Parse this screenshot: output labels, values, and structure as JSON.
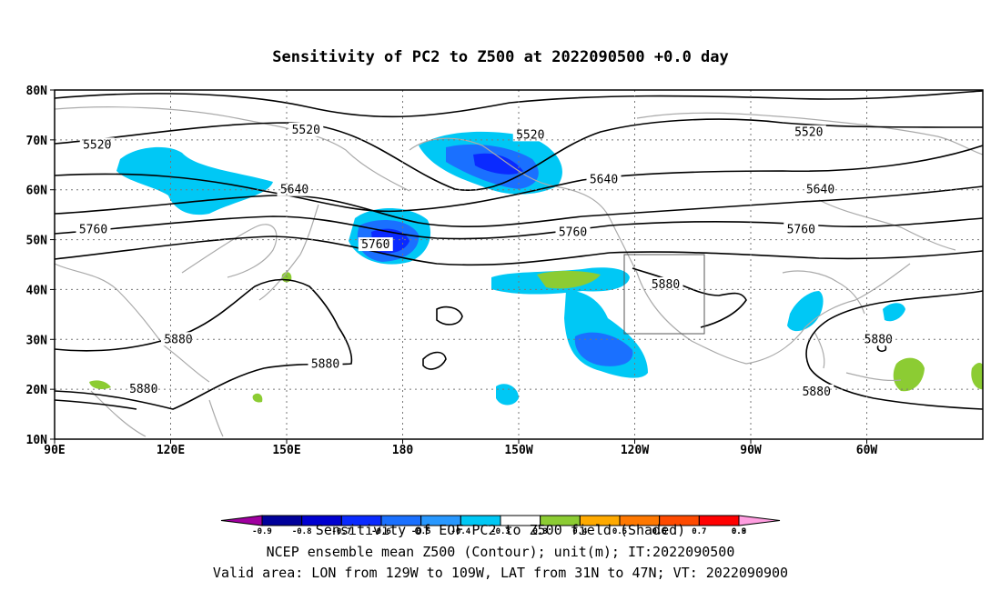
{
  "title": "Sensitivity of PC2 to Z500 at 2022090500 +0.0 day",
  "lat_labels": [
    "80N",
    "70N",
    "60N",
    "50N",
    "40N",
    "30N",
    "20N",
    "10N"
  ],
  "lon_labels": [
    "90E",
    "120E",
    "150E",
    "180",
    "150W",
    "120W",
    "90W",
    "60W"
  ],
  "contour_labels": [
    {
      "text": "5520",
      "lon": 101,
      "lat": 69
    },
    {
      "text": "5520",
      "lon": 155,
      "lat": 72
    },
    {
      "text": "5520",
      "lon": 213,
      "lat": 71
    },
    {
      "text": "5520",
      "lon": 285,
      "lat": 71.5
    },
    {
      "text": "5640",
      "lon": 152,
      "lat": 60
    },
    {
      "text": "5640",
      "lon": 232,
      "lat": 62
    },
    {
      "text": "5640",
      "lon": 288,
      "lat": 60
    },
    {
      "text": "5760",
      "lon": 100,
      "lat": 52
    },
    {
      "text": "5760",
      "lon": 173,
      "lat": 49
    },
    {
      "text": "5760",
      "lon": 224,
      "lat": 51.5
    },
    {
      "text": "5760",
      "lon": 283,
      "lat": 52
    },
    {
      "text": "5880",
      "lon": 122,
      "lat": 30
    },
    {
      "text": "5880",
      "lon": 160,
      "lat": 25
    },
    {
      "text": "5880",
      "lon": 113,
      "lat": 20
    },
    {
      "text": "5880",
      "lon": 248,
      "lat": 41
    },
    {
      "text": "5880",
      "lon": 303,
      "lat": 30
    },
    {
      "text": "5880",
      "lon": 287,
      "lat": 19.5
    }
  ],
  "colorbar": {
    "labels": [
      "-0.9",
      "-0.8",
      "-0.7",
      "-0.6",
      "-0.5",
      "-0.4",
      "-0.3",
      "0.3",
      "0.4",
      "0.5",
      "0.6",
      "0.7",
      "0.8",
      "0.9"
    ],
    "colors": [
      "#a000a0",
      "#00009a",
      "#0000d0",
      "#0a2aff",
      "#1a70ff",
      "#2898ff",
      "#00c8f5",
      "#ffffff",
      "#8ccc33",
      "#ffaa00",
      "#ff7800",
      "#ff4a00",
      "#ff0000",
      "#ff9ee0"
    ]
  },
  "footer": {
    "line1": "Sensitivity of EOF PC2 to Z500 field (Shaded)",
    "line2": "NCEP ensemble mean Z500 (Contour); unit(m); IT:2022090500",
    "line3": "Valid area: LON from 129W to 109W, LAT from 31N to 47N; VT: 2022090900"
  }
}
